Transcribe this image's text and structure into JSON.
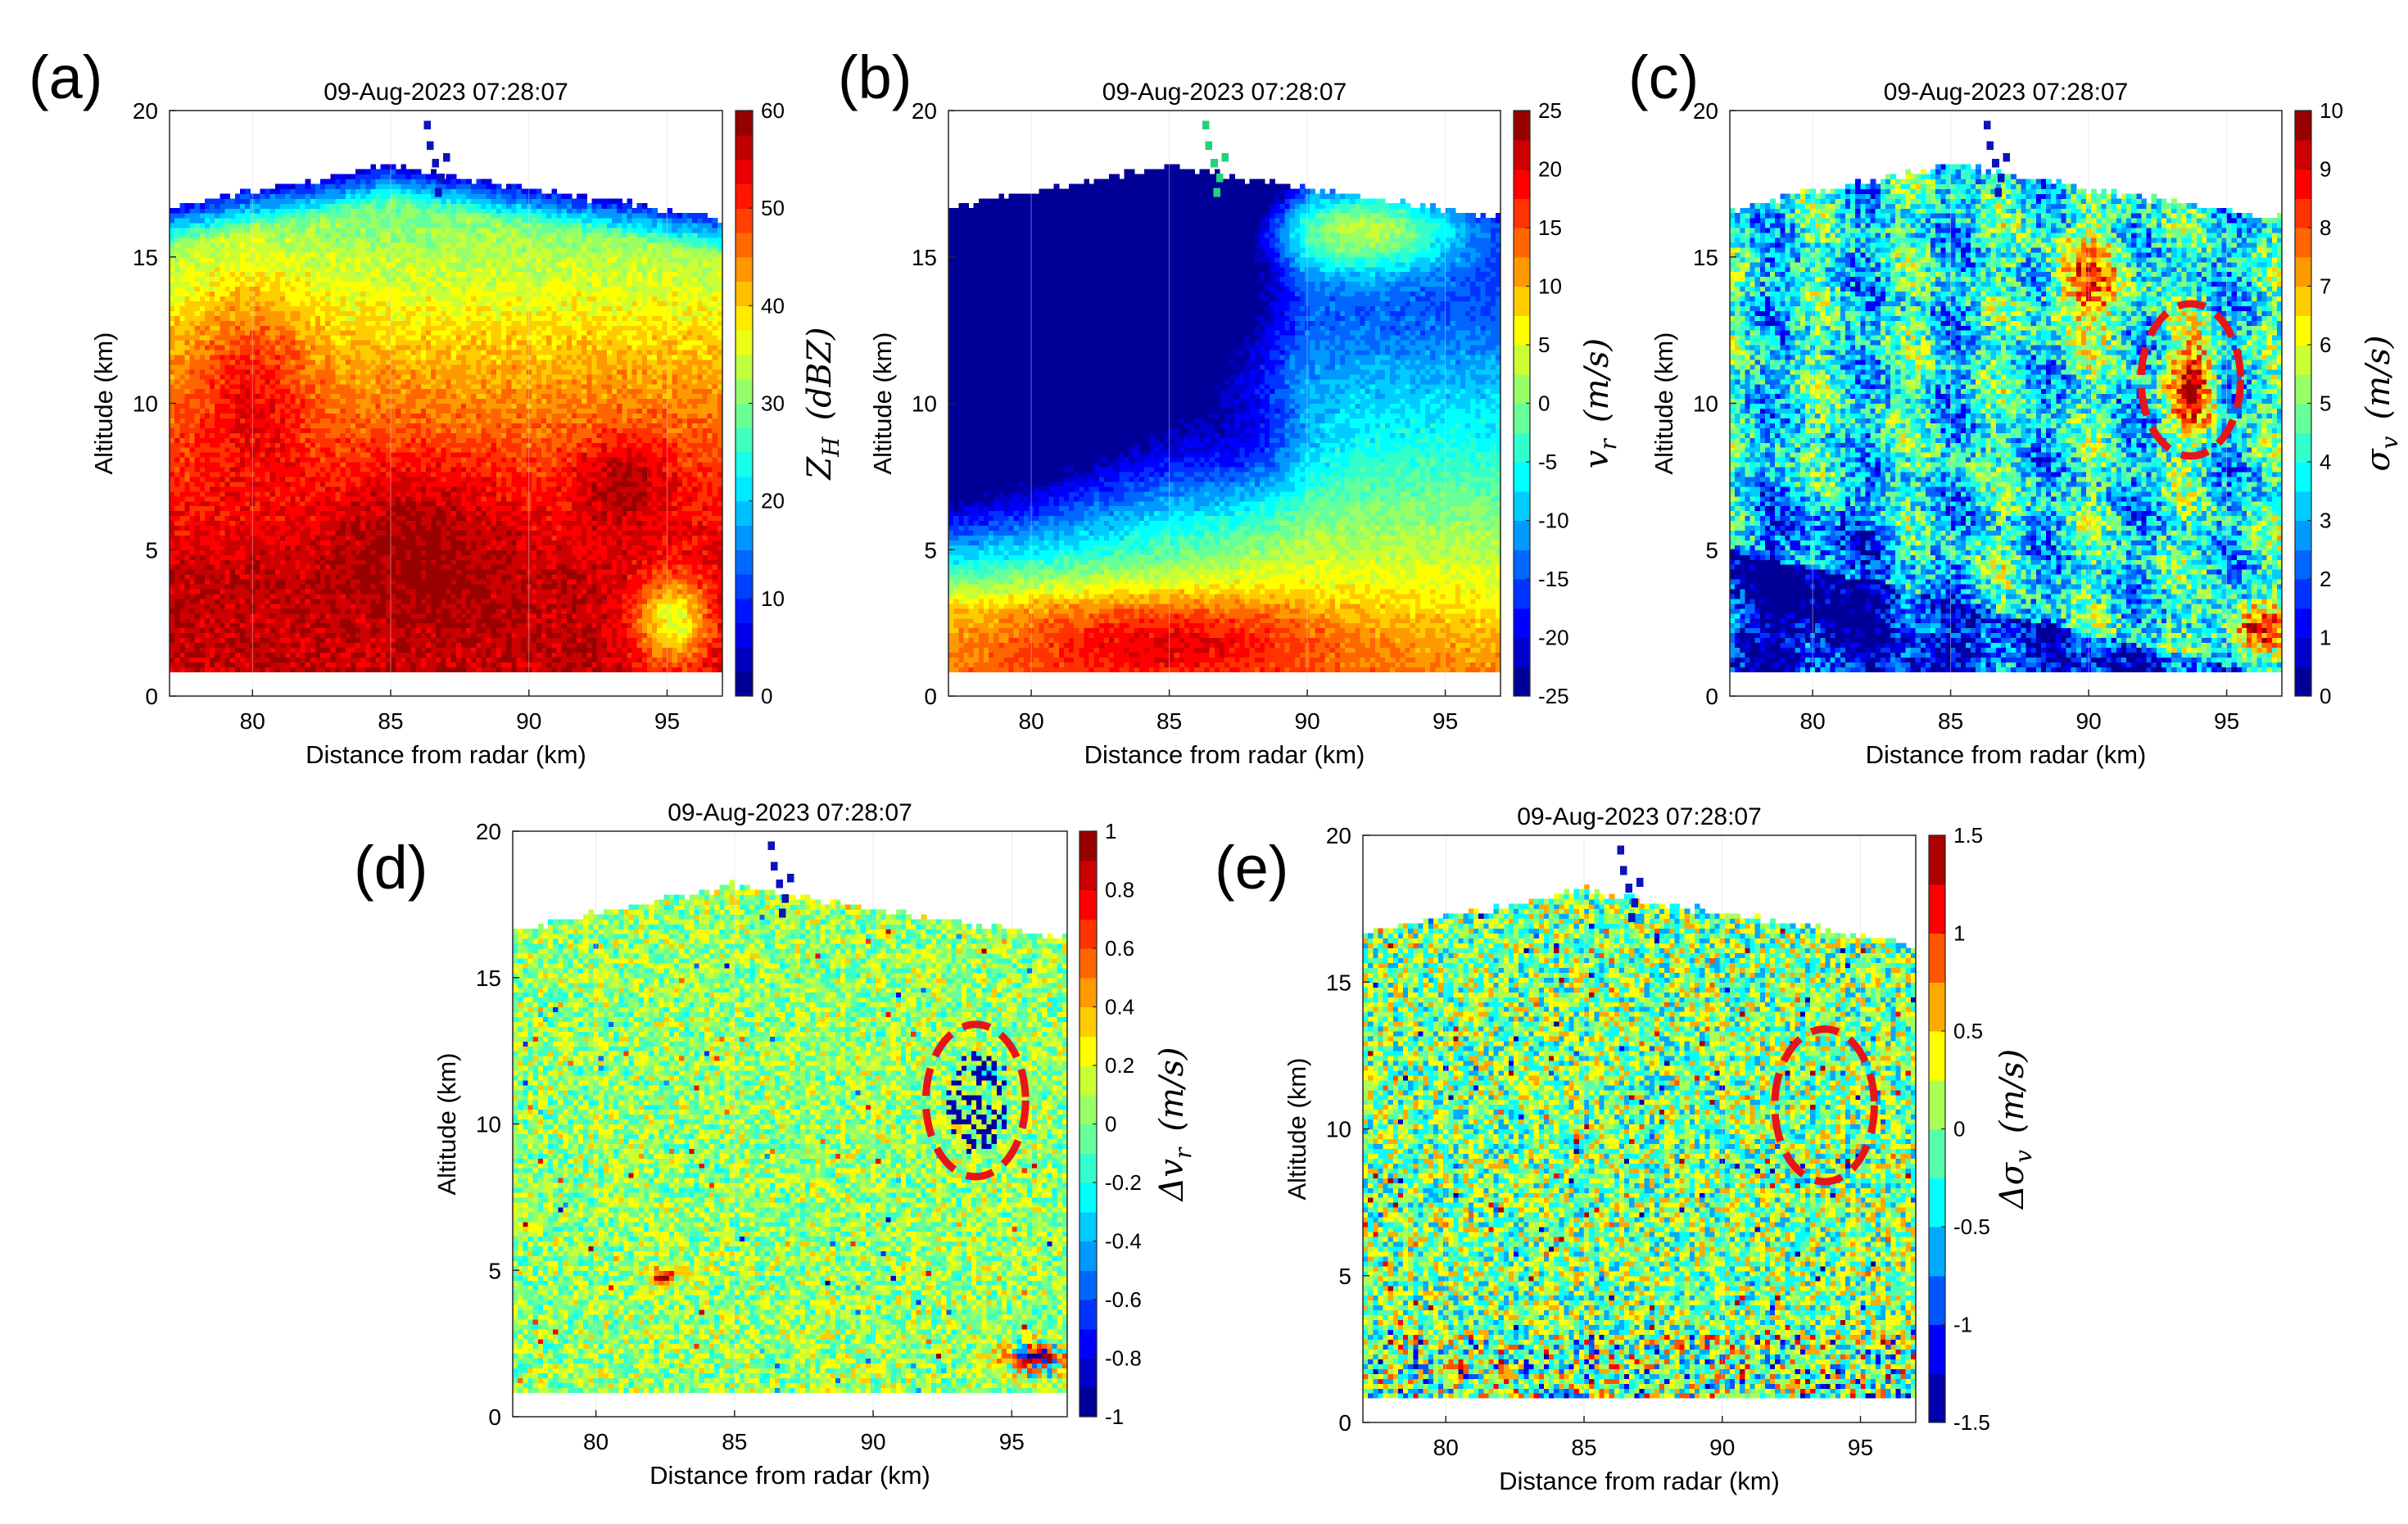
{
  "figure": {
    "x_axis_label": "Distance from radar (km)",
    "y_axis_label": "Altitude (km)"
  },
  "chart_data": [
    {
      "panel": "(a)",
      "type": "heatmap",
      "field": "ZH",
      "title": "09-Aug-2023 07:28:07",
      "xlabel": "Distance from radar (km)",
      "ylabel": "Altitude (km)",
      "xlim": [
        77,
        97
      ],
      "ylim": [
        0,
        20
      ],
      "xticks": [
        "80",
        "85",
        "90",
        "95"
      ],
      "yticks": [
        "0",
        "5",
        "10",
        "15",
        "20"
      ],
      "colorbar": {
        "label": "Z_H (dBZ)",
        "range": [
          0,
          60
        ],
        "ticks": [
          "0",
          "10",
          "20",
          "30",
          "40",
          "50",
          "60"
        ]
      },
      "echo_top_km": [
        16.6,
        16.9,
        17.2,
        17.4,
        17.6,
        17.9,
        18.2,
        17.9,
        17.7,
        17.5,
        17.3,
        17.1,
        16.9,
        16.7,
        16.5,
        16.3
      ]
    },
    {
      "panel": "(b)",
      "type": "heatmap",
      "field": "vr",
      "title": "09-Aug-2023 07:28:07",
      "xlabel": "Distance from radar (km)",
      "ylabel": "Altitude (km)",
      "xlim": [
        77,
        97
      ],
      "ylim": [
        0,
        20
      ],
      "xticks": [
        "80",
        "85",
        "90",
        "95"
      ],
      "yticks": [
        "0",
        "5",
        "10",
        "15",
        "20"
      ],
      "colorbar": {
        "label": "v_r (m/s)",
        "range": [
          -25,
          25
        ],
        "ticks": [
          "-25",
          "-20",
          "-15",
          "-10",
          "-5",
          "0",
          "5",
          "10",
          "15",
          "20",
          "25"
        ]
      }
    },
    {
      "panel": "(c)",
      "type": "heatmap",
      "field": "sigma_v",
      "title": "09-Aug-2023 07:28:07",
      "xlabel": "Distance from radar (km)",
      "ylabel": "Altitude (km)",
      "xlim": [
        77,
        97
      ],
      "ylim": [
        0,
        20
      ],
      "xticks": [
        "80",
        "85",
        "90",
        "95"
      ],
      "yticks": [
        "0",
        "5",
        "10",
        "15",
        "20"
      ],
      "colorbar": {
        "label": "σ_v (m/s)",
        "range": [
          0,
          10
        ],
        "ticks": [
          "0",
          "1",
          "2",
          "3",
          "4",
          "5",
          "6",
          "7",
          "8",
          "9",
          "10"
        ]
      },
      "annotation": {
        "shape": "dashed-ellipse",
        "color": "#e8141a",
        "center": [
          93.7,
          10.8
        ],
        "semi_axes": [
          1.8,
          2.6
        ]
      }
    },
    {
      "panel": "(d)",
      "type": "heatmap",
      "field": "delta_vr",
      "title": "09-Aug-2023 07:28:07",
      "xlabel": "Distance from radar (km)",
      "ylabel": "Altitude (km)",
      "xlim": [
        77,
        97
      ],
      "ylim": [
        0,
        20
      ],
      "xticks": [
        "80",
        "85",
        "90",
        "95"
      ],
      "yticks": [
        "0",
        "5",
        "10",
        "15",
        "20"
      ],
      "colorbar": {
        "label": "Δv_r (m/s)",
        "range": [
          -1,
          1
        ],
        "ticks": [
          "-1",
          "-0.8",
          "-0.6",
          "-0.4",
          "-0.2",
          "0",
          "0.2",
          "0.4",
          "0.6",
          "0.8",
          "1"
        ]
      },
      "annotation": {
        "shape": "dashed-ellipse",
        "color": "#e8141a",
        "center": [
          93.7,
          10.8
        ],
        "semi_axes": [
          1.8,
          2.6
        ]
      }
    },
    {
      "panel": "(e)",
      "type": "heatmap",
      "field": "delta_sigma_v",
      "title": "09-Aug-2023 07:28:07",
      "xlabel": "Distance from radar (km)",
      "ylabel": "Altitude (km)",
      "xlim": [
        77,
        97
      ],
      "ylim": [
        0,
        20
      ],
      "xticks": [
        "80",
        "85",
        "90",
        "95"
      ],
      "yticks": [
        "0",
        "5",
        "10",
        "15",
        "20"
      ],
      "colorbar": {
        "label": "Δσ_v (m/s)",
        "range": [
          -1.5,
          1.5
        ],
        "ticks": [
          "-1.5",
          "-1",
          "-0.5",
          "0",
          "0.5",
          "1",
          "1.5"
        ]
      },
      "annotation": {
        "shape": "dashed-ellipse",
        "color": "#e8141a",
        "center": [
          93.7,
          10.8
        ],
        "semi_axes": [
          1.8,
          2.6
        ]
      }
    }
  ]
}
